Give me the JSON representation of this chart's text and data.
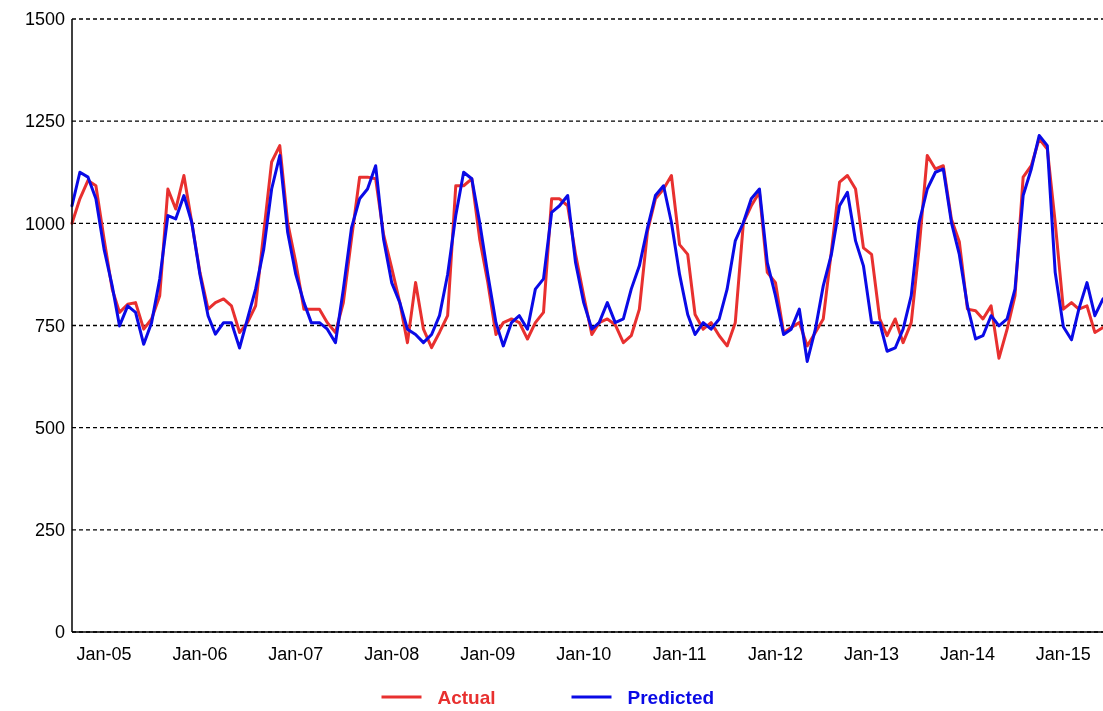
{
  "chart_data": {
    "type": "line",
    "x": [
      "2004-09",
      "2004-10",
      "2004-11",
      "2004-12",
      "2005-01",
      "2005-02",
      "2005-03",
      "2005-04",
      "2005-05",
      "2005-06",
      "2005-07",
      "2005-08",
      "2005-09",
      "2005-10",
      "2005-11",
      "2005-12",
      "2006-01",
      "2006-02",
      "2006-03",
      "2006-04",
      "2006-05",
      "2006-06",
      "2006-07",
      "2006-08",
      "2006-09",
      "2006-10",
      "2006-11",
      "2006-12",
      "2007-01",
      "2007-02",
      "2007-03",
      "2007-04",
      "2007-05",
      "2007-06",
      "2007-07",
      "2007-08",
      "2007-09",
      "2007-10",
      "2007-11",
      "2007-12",
      "2008-01",
      "2008-02",
      "2008-03",
      "2008-04",
      "2008-05",
      "2008-06",
      "2008-07",
      "2008-08",
      "2008-09",
      "2008-10",
      "2008-11",
      "2008-12",
      "2009-01",
      "2009-02",
      "2009-03",
      "2009-04",
      "2009-05",
      "2009-06",
      "2009-07",
      "2009-08",
      "2009-09",
      "2009-10",
      "2009-11",
      "2009-12",
      "2010-01",
      "2010-02",
      "2010-03",
      "2010-04",
      "2010-05",
      "2010-06",
      "2010-07",
      "2010-08",
      "2010-09",
      "2010-10",
      "2010-11",
      "2010-12",
      "2011-01",
      "2011-02",
      "2011-03",
      "2011-04",
      "2011-05",
      "2011-06",
      "2011-07",
      "2011-08",
      "2011-09",
      "2011-10",
      "2011-11",
      "2011-12",
      "2012-01",
      "2012-02",
      "2012-03",
      "2012-04",
      "2012-05",
      "2012-06",
      "2012-07",
      "2012-08",
      "2012-09",
      "2012-10",
      "2012-11",
      "2012-12",
      "2013-01",
      "2013-02",
      "2013-03",
      "2013-04",
      "2013-05",
      "2013-06",
      "2013-07",
      "2013-08",
      "2013-09",
      "2013-10",
      "2013-11",
      "2013-12",
      "2014-01",
      "2014-02",
      "2014-03",
      "2014-04",
      "2014-05",
      "2014-06",
      "2014-07",
      "2014-08",
      "2014-09",
      "2014-10",
      "2014-11",
      "2014-12",
      "2015-01",
      "2015-02",
      "2015-03",
      "2015-04",
      "2015-05",
      "2015-06"
    ],
    "series": [
      {
        "name": "Actual",
        "color": "#e8302f",
        "values": [
          1000,
          1060,
          1105,
          1092,
          962,
          839,
          782,
          802,
          806,
          741,
          766,
          823,
          1084,
          1035,
          1117,
          1002,
          880,
          790,
          806,
          815,
          798,
          733,
          757,
          798,
          978,
          1150,
          1190,
          1002,
          904,
          790,
          790,
          790,
          757,
          733,
          806,
          962,
          1113,
          1113,
          1109,
          973,
          891,
          806,
          708,
          855,
          741,
          696,
          733,
          774,
          1092,
          1092,
          1109,
          962,
          855,
          728,
          757,
          766,
          757,
          717,
          757,
          782,
          1060,
          1060,
          1043,
          924,
          823,
          728,
          757,
          766,
          752,
          708,
          725,
          790,
          981,
          1060,
          1084,
          1117,
          948,
          924,
          777,
          741,
          757,
          725,
          700,
          757,
          1002,
          1043,
          1076,
          880,
          855,
          733,
          745,
          757,
          700,
          733,
          766,
          932,
          1101,
          1117,
          1084,
          940,
          924,
          766,
          725,
          766,
          708,
          757,
          940,
          1166,
          1133,
          1141,
          1010,
          955,
          790,
          786,
          766,
          798,
          670,
          741,
          823,
          1113,
          1141,
          1207,
          1182,
          1002,
          790,
          806,
          790,
          798,
          733,
          745
        ]
      },
      {
        "name": "Predicted",
        "color": "#0a0ae6",
        "values": [
          1043,
          1125,
          1113,
          1060,
          937,
          847,
          749,
          798,
          782,
          704,
          757,
          864,
          1019,
          1011,
          1068,
          1002,
          875,
          774,
          729,
          757,
          757,
          695,
          766,
          839,
          937,
          1084,
          1166,
          978,
          875,
          806,
          757,
          757,
          741,
          708,
          839,
          989,
          1060,
          1084,
          1141,
          962,
          855,
          806,
          741,
          728,
          708,
          728,
          774,
          875,
          1019,
          1125,
          1109,
          1002,
          875,
          757,
          700,
          757,
          774,
          741,
          839,
          864,
          1027,
          1043,
          1068,
          904,
          806,
          741,
          757,
          806,
          757,
          766,
          839,
          896,
          989,
          1068,
          1092,
          1002,
          875,
          777,
          728,
          757,
          741,
          766,
          839,
          957,
          1002,
          1060,
          1084,
          904,
          823,
          728,
          741,
          790,
          662,
          741,
          847,
          924,
          1043,
          1076,
          957,
          896,
          757,
          757,
          687,
          695,
          741,
          823,
          1002,
          1084,
          1125,
          1133,
          1002,
          924,
          798,
          717,
          725,
          774,
          749,
          766,
          839,
          1068,
          1133,
          1215,
          1190,
          880,
          747,
          715,
          790,
          855,
          774,
          815
        ]
      }
    ],
    "xlim": [
      "2004-09",
      "2015-06"
    ],
    "xticks": [
      {
        "value": "2005-01",
        "label": "Jan-05"
      },
      {
        "value": "2006-01",
        "label": "Jan-06"
      },
      {
        "value": "2007-01",
        "label": "Jan-07"
      },
      {
        "value": "2008-01",
        "label": "Jan-08"
      },
      {
        "value": "2009-01",
        "label": "Jan-09"
      },
      {
        "value": "2010-01",
        "label": "Jan-10"
      },
      {
        "value": "2011-01",
        "label": "Jan-11"
      },
      {
        "value": "2012-01",
        "label": "Jan-12"
      },
      {
        "value": "2013-01",
        "label": "Jan-13"
      },
      {
        "value": "2014-01",
        "label": "Jan-14"
      },
      {
        "value": "2015-01",
        "label": "Jan-15"
      }
    ],
    "ylim": [
      0,
      1500
    ],
    "yticks": [
      0,
      250,
      500,
      750,
      1000,
      1250,
      1500
    ],
    "grid": "y",
    "legend": "bottom",
    "line_style": "solid"
  }
}
